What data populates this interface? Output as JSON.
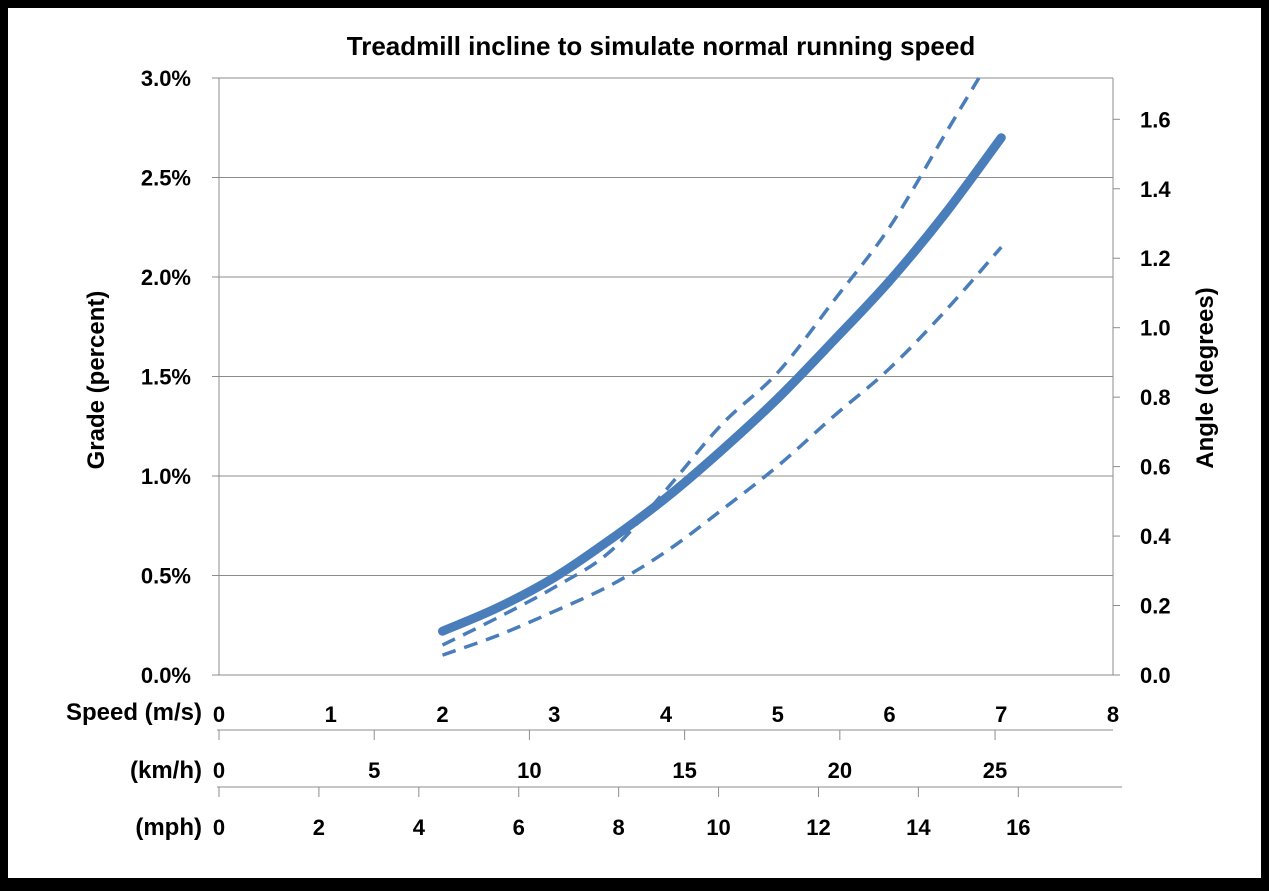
{
  "chart_data": {
    "type": "line",
    "title": "Treadmill incline to simulate normal running speed",
    "ylabel_left": "Grade (percent)",
    "ylabel_right": "Angle (degrees)",
    "ylim_left": [
      0,
      3.0
    ],
    "yticks_left": [
      "0.0%",
      "0.5%",
      "1.0%",
      "1.5%",
      "2.0%",
      "2.5%",
      "3.0%"
    ],
    "ylim_right_degrees": [
      0,
      1.7189
    ],
    "yticks_right": [
      "0.0",
      "0.2",
      "0.4",
      "0.6",
      "0.8",
      "1.0",
      "1.2",
      "1.4",
      "1.6"
    ],
    "grid": true,
    "x_axes": [
      {
        "label": "Speed (m/s)",
        "ticks": [
          "0",
          "1",
          "2",
          "3",
          "4",
          "5",
          "6",
          "7",
          "8"
        ],
        "range_ms": [
          0,
          8
        ]
      },
      {
        "label": "(km/h)",
        "ticks": [
          "0",
          "5",
          "10",
          "15",
          "20",
          "25"
        ]
      },
      {
        "label": "(mph)",
        "ticks": [
          "0",
          "2",
          "4",
          "6",
          "8",
          "10",
          "12",
          "14",
          "16"
        ]
      }
    ],
    "series": [
      {
        "style": "solid",
        "color": "#4A7EBB",
        "x": [
          2.0,
          2.5,
          3.0,
          3.5,
          4.0,
          4.5,
          5.0,
          5.5,
          6.0,
          6.5,
          7.0
        ],
        "y": [
          0.22,
          0.34,
          0.49,
          0.68,
          0.89,
          1.13,
          1.39,
          1.68,
          1.98,
          2.32,
          2.7
        ]
      },
      {
        "style": "dashed",
        "color": "#4A7EBB",
        "x": [
          2.0,
          2.5,
          3.0,
          3.5,
          4.0,
          4.5,
          5.0,
          5.5,
          6.0,
          6.5,
          6.8
        ],
        "y": [
          0.15,
          0.29,
          0.44,
          0.62,
          0.93,
          1.26,
          1.52,
          1.88,
          2.25,
          2.72,
          3.0
        ]
      },
      {
        "style": "dashed",
        "color": "#4A7EBB",
        "x": [
          2.0,
          2.5,
          3.0,
          3.5,
          4.0,
          4.5,
          5.0,
          5.5,
          6.0,
          6.5,
          7.0
        ],
        "y": [
          0.1,
          0.2,
          0.32,
          0.45,
          0.62,
          0.83,
          1.05,
          1.3,
          1.54,
          1.83,
          2.15
        ]
      }
    ]
  }
}
